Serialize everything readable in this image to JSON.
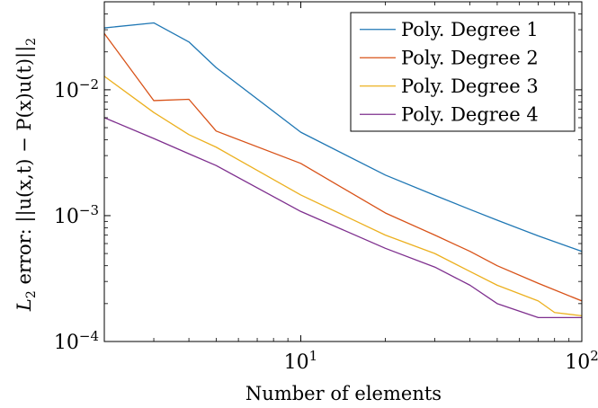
{
  "chart_data": {
    "type": "line",
    "title": "",
    "xlabel": "Number of elements",
    "ylabel": "L2 error: ||u(x,t) − P(x)u(t)||2",
    "xscale": "log",
    "yscale": "log",
    "xlim": [
      2,
      100
    ],
    "ylim": [
      0.0001,
      0.05
    ],
    "grid": false,
    "legend_position": "top-right",
    "x_ticks": [
      {
        "value": 10,
        "base": "10",
        "exp": "1"
      },
      {
        "value": 100,
        "base": "10",
        "exp": "2"
      }
    ],
    "y_ticks": [
      {
        "value": 0.0001,
        "base": "10",
        "exp": "−4"
      },
      {
        "value": 0.001,
        "base": "10",
        "exp": "−3"
      },
      {
        "value": 0.01,
        "base": "10",
        "exp": "−2"
      }
    ],
    "series": [
      {
        "name": "Poly. Degree 1",
        "color": "#1f77b4",
        "x": [
          2,
          3,
          4,
          5,
          10,
          20,
          30,
          40,
          50,
          70,
          100
        ],
        "y": [
          0.031,
          0.034,
          0.024,
          0.015,
          0.0046,
          0.0021,
          0.00145,
          0.00112,
          0.00092,
          0.00069,
          0.00052
        ]
      },
      {
        "name": "Poly. Degree 2",
        "color": "#d85218",
        "x": [
          2,
          3,
          4,
          5,
          10,
          20,
          30,
          40,
          50,
          70,
          100
        ],
        "y": [
          0.028,
          0.0082,
          0.0084,
          0.0047,
          0.0026,
          0.00105,
          0.0007,
          0.00052,
          0.0004,
          0.00029,
          0.00021
        ]
      },
      {
        "name": "Poly. Degree 3",
        "color": "#ecb01f",
        "x": [
          2,
          3,
          4,
          5,
          10,
          20,
          30,
          40,
          50,
          70,
          80,
          100
        ],
        "y": [
          0.0128,
          0.0066,
          0.0044,
          0.0035,
          0.00146,
          0.0007,
          0.0005,
          0.00036,
          0.00028,
          0.00021,
          0.00017,
          0.00016
        ]
      },
      {
        "name": "Poly. Degree 4",
        "color": "#7e2f8e",
        "x": [
          2,
          3,
          4,
          5,
          10,
          20,
          30,
          40,
          50,
          70,
          100
        ],
        "y": [
          0.006,
          0.0041,
          0.0031,
          0.0025,
          0.00108,
          0.00055,
          0.00039,
          0.00028,
          0.0002,
          0.000155,
          0.000155
        ]
      }
    ]
  }
}
